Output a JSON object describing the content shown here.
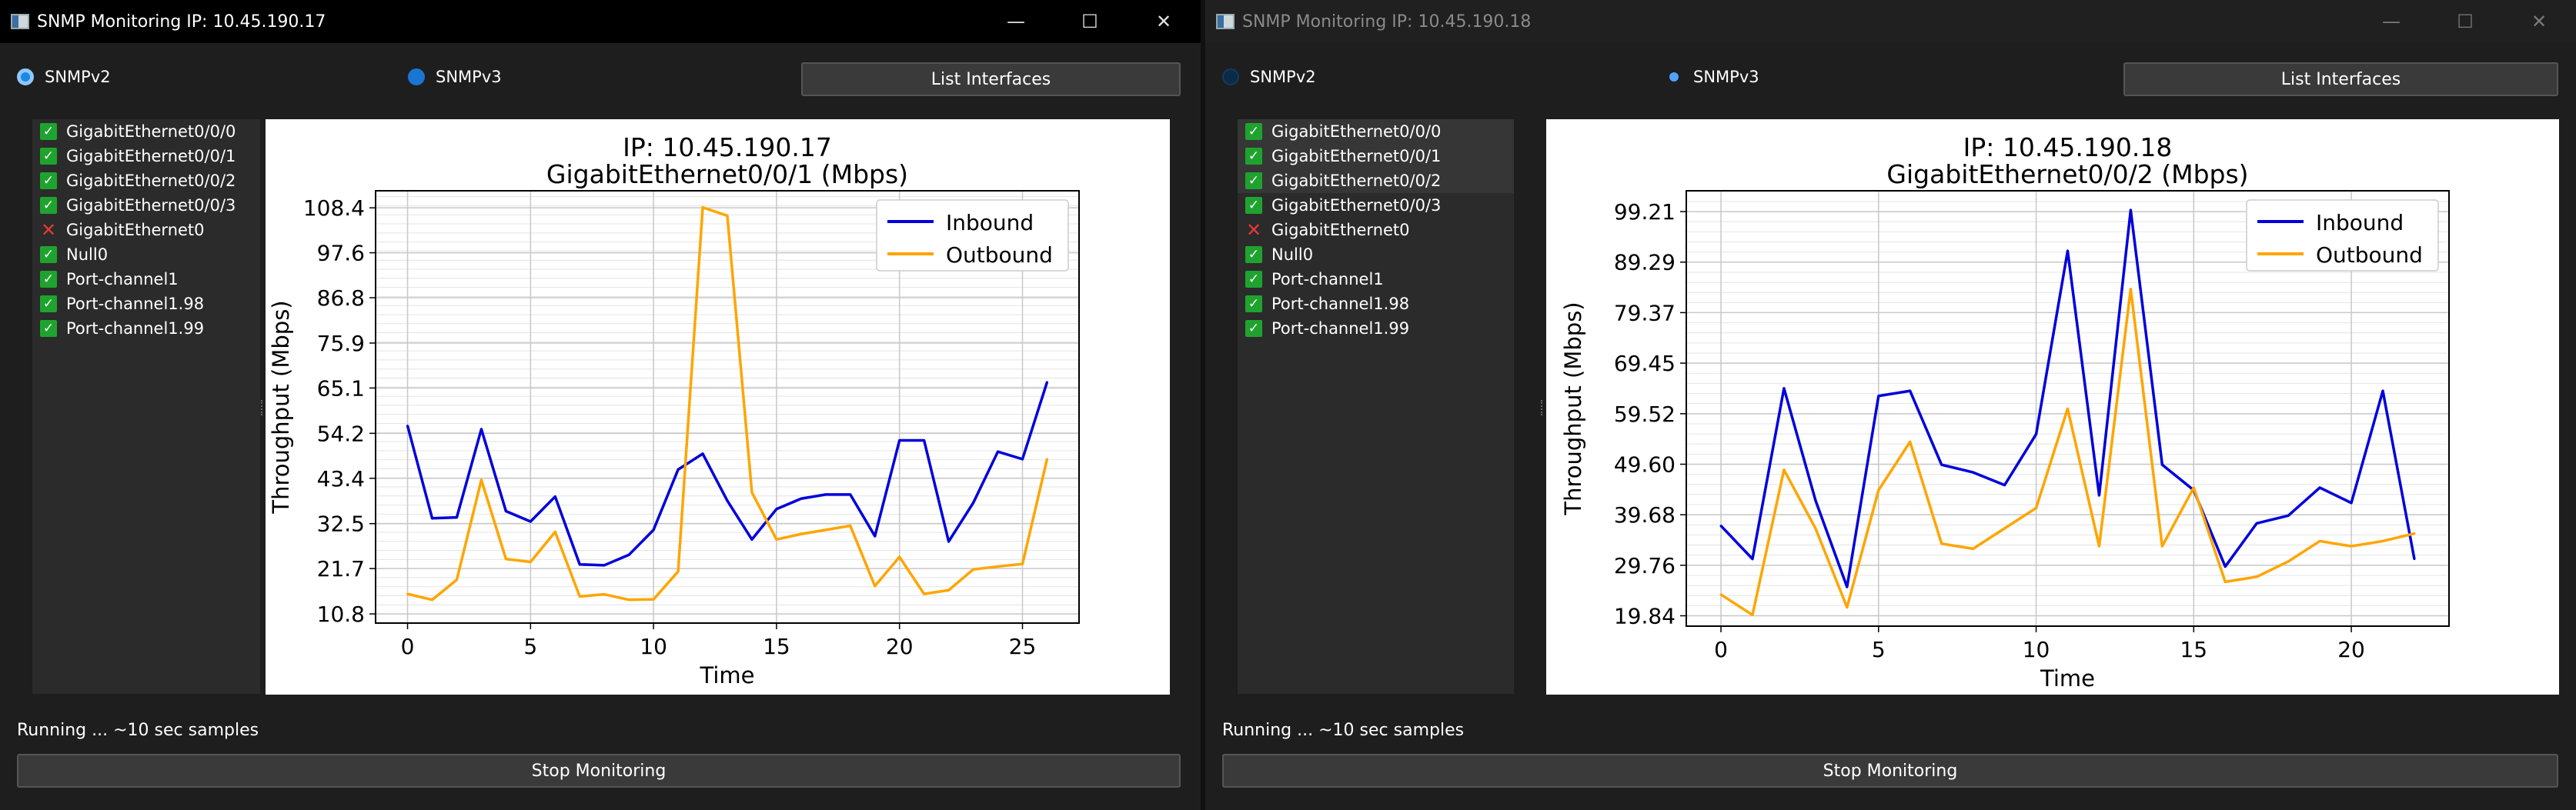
{
  "windows": [
    {
      "title": "SNMP Monitoring IP: 10.45.190.17",
      "radios": [
        {
          "label": "SNMPv2",
          "state": "selected"
        },
        {
          "label": "SNMPv3",
          "state": "filled"
        }
      ],
      "list_button": "List Interfaces",
      "interfaces": [
        {
          "name": "GigabitEthernet0/0/0",
          "checked": true
        },
        {
          "name": "GigabitEthernet0/0/1",
          "checked": true
        },
        {
          "name": "GigabitEthernet0/0/2",
          "checked": true
        },
        {
          "name": "GigabitEthernet0/0/3",
          "checked": true
        },
        {
          "name": "GigabitEthernet0",
          "checked": false
        },
        {
          "name": "Null0",
          "checked": true
        },
        {
          "name": "Port-channel1",
          "checked": true
        },
        {
          "name": "Port-channel1.98",
          "checked": true
        },
        {
          "name": "Port-channel1.99",
          "checked": true
        }
      ],
      "status": "Running ... ~10 sec samples",
      "stop_button": "Stop Monitoring"
    },
    {
      "title": "SNMP Monitoring IP: 10.45.190.18",
      "radios": [
        {
          "label": "SNMPv2",
          "state": "dim"
        },
        {
          "label": "SNMPv3",
          "state": "small"
        }
      ],
      "list_button": "List Interfaces",
      "interfaces": [
        {
          "name": "GigabitEthernet0/0/0",
          "checked": true
        },
        {
          "name": "GigabitEthernet0/0/1",
          "checked": true
        },
        {
          "name": "GigabitEthernet0/0/2",
          "checked": true
        },
        {
          "name": "GigabitEthernet0/0/3",
          "checked": true
        },
        {
          "name": "GigabitEthernet0",
          "checked": false
        },
        {
          "name": "Null0",
          "checked": true
        },
        {
          "name": "Port-channel1",
          "checked": true
        },
        {
          "name": "Port-channel1.98",
          "checked": true
        },
        {
          "name": "Port-channel1.99",
          "checked": true
        }
      ],
      "status": "Running ... ~10 sec samples",
      "stop_button": "Stop Monitoring"
    }
  ],
  "colors": {
    "inbound": "#0000dd",
    "outbound": "#ffa500",
    "check": "#1fa32f",
    "cross": "#e53935",
    "radio": "#1e88e5"
  },
  "chart_data": [
    {
      "type": "line",
      "title": "IP: 10.45.190.17",
      "subtitle": "GigabitEthernet0/0/1 (Mbps)",
      "xlabel": "Time",
      "ylabel": "Throughput (Mbps)",
      "xlim": [
        -1.3,
        27.3
      ],
      "ylim": [
        8.6,
        112.5
      ],
      "xticks": [
        0,
        5,
        10,
        15,
        20,
        25
      ],
      "yticks": [
        10.8,
        21.7,
        32.5,
        43.4,
        54.2,
        65.1,
        75.9,
        86.8,
        97.6,
        108.4
      ],
      "ytick_labels": [
        "10.8",
        "21.7",
        "32.5",
        "43.4",
        "54.2",
        "65.1",
        "75.9",
        "86.8",
        "97.6",
        "108.4"
      ],
      "grid": true,
      "legend": "top-right",
      "x": [
        0,
        1,
        2,
        3,
        4,
        5,
        6,
        7,
        8,
        9,
        10,
        11,
        12,
        13,
        14,
        15,
        16,
        17,
        18,
        19,
        20,
        21,
        22,
        23,
        24,
        25,
        26
      ],
      "series": [
        {
          "name": "Inbound",
          "color": "#0000dd",
          "values": [
            56.0,
            33.8,
            34.0,
            55.2,
            35.5,
            33.0,
            39.0,
            22.7,
            22.5,
            25.0,
            31.0,
            45.5,
            49.3,
            38.0,
            28.7,
            36.0,
            38.5,
            39.5,
            39.5,
            29.5,
            52.5,
            52.5,
            28.2,
            37.5,
            49.8,
            48.0,
            66.5
          ]
        },
        {
          "name": "Outbound",
          "color": "#ffa500",
          "values": [
            15.6,
            14.2,
            19.0,
            43.0,
            24.0,
            23.3,
            30.5,
            15.0,
            15.5,
            14.2,
            14.3,
            21.0,
            108.5,
            106.5,
            40.0,
            28.7,
            30.0,
            31.0,
            32.0,
            17.5,
            24.5,
            15.6,
            16.5,
            21.5,
            22.2,
            22.8,
            48.0
          ]
        }
      ]
    },
    {
      "type": "line",
      "title": "IP: 10.45.190.18",
      "subtitle": "GigabitEthernet0/0/2 (Mbps)",
      "xlabel": "Time",
      "ylabel": "Throughput (Mbps)",
      "xlim": [
        -1.1,
        23.1
      ],
      "ylim": [
        17.8,
        103.3
      ],
      "xticks": [
        0,
        5,
        10,
        15,
        20
      ],
      "yticks": [
        19.84,
        29.76,
        39.68,
        49.6,
        59.52,
        69.45,
        79.37,
        89.29,
        99.21
      ],
      "ytick_labels": [
        "19.84",
        "29.76",
        "39.68",
        "49.60",
        "59.52",
        "69.45",
        "79.37",
        "89.29",
        "99.21"
      ],
      "grid": true,
      "legend": "top-right",
      "x": [
        0,
        1,
        2,
        3,
        4,
        5,
        6,
        7,
        8,
        9,
        10,
        11,
        12,
        13,
        14,
        15,
        16,
        17,
        18,
        19,
        20,
        21,
        22
      ],
      "series": [
        {
          "name": "Inbound",
          "color": "#0000dd",
          "values": [
            37.5,
            31.0,
            64.5,
            42.5,
            25.5,
            63.0,
            64.0,
            49.5,
            48.0,
            45.5,
            55.5,
            91.5,
            43.5,
            99.5,
            49.5,
            44.5,
            29.5,
            38.0,
            39.5,
            45.0,
            42.0,
            64.0,
            31.0
          ]
        },
        {
          "name": "Outbound",
          "color": "#ffa500",
          "values": [
            24.0,
            20.0,
            48.5,
            37.0,
            21.5,
            44.5,
            54.0,
            34.0,
            33.0,
            37.0,
            41.0,
            60.5,
            33.5,
            84.0,
            33.5,
            45.0,
            26.5,
            27.5,
            30.5,
            34.5,
            33.5,
            34.5,
            36.0
          ]
        }
      ]
    }
  ]
}
